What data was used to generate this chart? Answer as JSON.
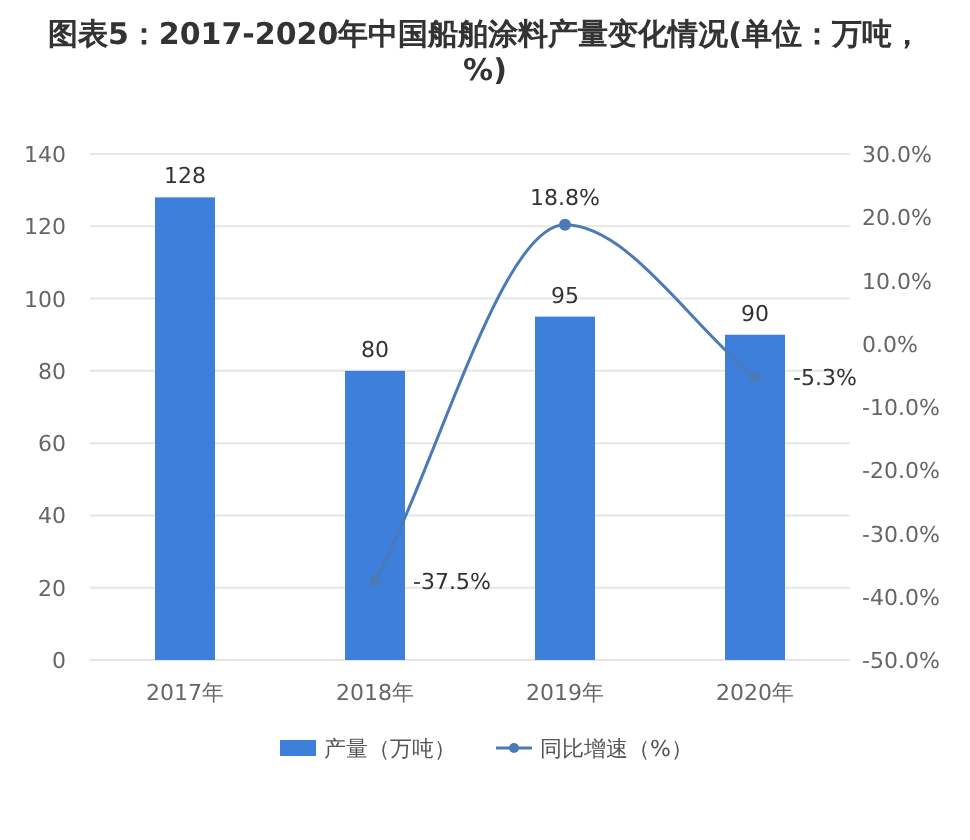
{
  "chart_data": {
    "type": "bar",
    "title": "图表5：2017-2020年中国船舶涂料产量变化情况(单位：万吨，%)",
    "categories": [
      "2017年",
      "2018年",
      "2019年",
      "2020年"
    ],
    "series": [
      {
        "name": "产量（万吨）",
        "color": "#3f7fdc",
        "values": [
          128,
          80,
          95,
          90
        ],
        "value_labels": [
          "128",
          "80",
          "95",
          "90"
        ]
      },
      {
        "name": "同比增速（%）",
        "type": "line",
        "axis": "y2",
        "color": "#4a7ab8",
        "values": [
          null,
          -37.5,
          18.8,
          -5.3
        ],
        "value_labels": [
          null,
          "-37.5%",
          "18.8%",
          "-5.3%"
        ],
        "marker": "circle"
      }
    ],
    "ylim": [
      0,
      140
    ],
    "yticks": [
      0,
      20,
      40,
      60,
      80,
      100,
      120,
      140
    ],
    "y2lim": [
      -50,
      30
    ],
    "y2ticks": [
      {
        "value": -50,
        "label": "-50.0%"
      },
      {
        "value": -40,
        "label": "-40.0%"
      },
      {
        "value": -30,
        "label": "-30.0%"
      },
      {
        "value": -20,
        "label": "-20.0%"
      },
      {
        "value": -10,
        "label": "-10.0%"
      },
      {
        "value": 0,
        "label": "0.0%"
      },
      {
        "value": 10,
        "label": "10.0%"
      },
      {
        "value": 20,
        "label": "20.0%"
      },
      {
        "value": 30,
        "label": "30.0%"
      }
    ],
    "grid": "y",
    "legend": "bottom"
  }
}
